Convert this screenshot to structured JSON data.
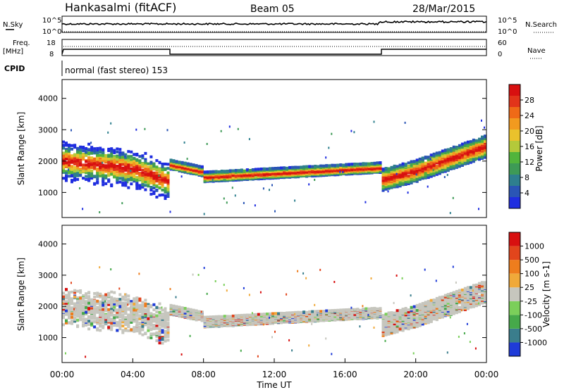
{
  "header": {
    "station": "Hankasalmi (fitACF)",
    "beam": "Beam 05",
    "date": "28/Mar/2015"
  },
  "noise_panel": {
    "left_label": "N.Sky",
    "right_label": "N.Search",
    "left_ticks": [
      "10^5",
      "10^0"
    ],
    "right_ticks": [
      "10^5",
      "10^0"
    ]
  },
  "freq_panel": {
    "left_label_1": "Freq.",
    "left_label_2": "[MHz]",
    "right_label": "Nave",
    "left_ticks": [
      "18",
      "8"
    ],
    "right_ticks": [
      "60",
      "0"
    ]
  },
  "cpid": {
    "label": "CPID",
    "text": "normal (fast stereo) 153"
  },
  "chart_data": [
    {
      "type": "heatmap",
      "title": "",
      "ylabel": "Slant Range [km]",
      "xlabel": "",
      "ylim": [
        200,
        4600
      ],
      "y_ticks": [
        "4000",
        "3000",
        "2000",
        "1000"
      ],
      "colorbar": {
        "label": "Power [dB]",
        "ticks": [
          "28",
          "24",
          "20",
          "16",
          "12",
          "8",
          "4"
        ],
        "colors": [
          "#1f2de0",
          "#2a55b5",
          "#2e7f8e",
          "#3e9a56",
          "#52b43c",
          "#b4c93a",
          "#eac22c",
          "#f29a1f",
          "#ef6a17",
          "#e2341a",
          "#d81010"
        ]
      }
    },
    {
      "type": "heatmap",
      "title": "",
      "ylabel": "Slant Range [km]",
      "xlabel": "Time UT",
      "ylim": [
        200,
        4600
      ],
      "y_ticks": [
        "4000",
        "3000",
        "2000",
        "1000"
      ],
      "x_ticks": [
        "00:00",
        "04:00",
        "08:00",
        "12:00",
        "16:00",
        "20:00",
        "00:00"
      ],
      "colorbar": {
        "label": "Velocity [m s-1]",
        "ticks": [
          "1000",
          "500",
          "100",
          "25",
          "-25",
          "-100",
          "-500",
          "-1000"
        ],
        "colors": [
          "#1f3bd8",
          "#3a7d8c",
          "#46a94a",
          "#7bcf5a",
          "#c6c6be",
          "#f0a93a",
          "#ee7d1d",
          "#e2451c",
          "#d81010"
        ]
      }
    }
  ]
}
